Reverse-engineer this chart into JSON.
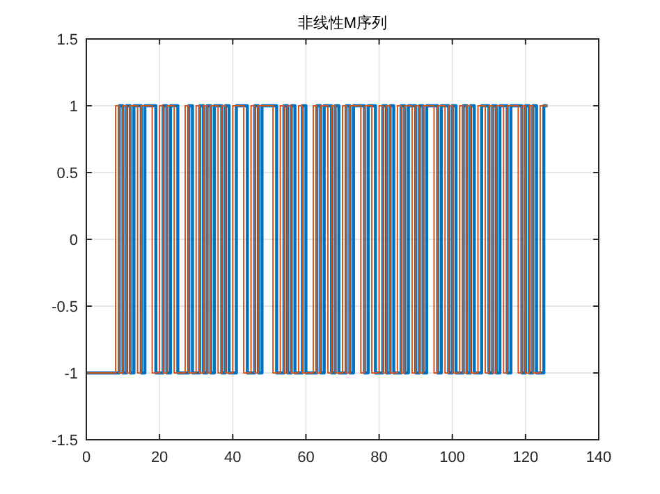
{
  "chart_data": {
    "type": "step",
    "title": "非线性M序列",
    "xlim": [
      0,
      140
    ],
    "xticks": [
      0,
      20,
      40,
      60,
      80,
      100,
      120,
      140
    ],
    "ylim": [
      -1.5,
      1.5
    ],
    "yticks": [
      -1.5,
      -1,
      -0.5,
      0,
      0.5,
      1,
      1.5
    ],
    "grid": true,
    "series": [
      {
        "color": "#0072bd",
        "x": [
          0,
          9,
          10,
          11,
          12,
          13,
          15,
          16,
          19,
          21,
          22,
          23,
          25,
          28,
          29,
          31,
          32,
          33,
          34,
          35,
          37,
          38,
          39,
          41,
          44,
          46,
          47,
          48,
          52,
          54,
          55,
          56,
          57,
          59,
          60,
          63,
          64,
          65,
          67,
          68,
          69,
          71,
          72,
          73,
          76,
          77,
          79,
          81,
          82,
          83,
          84,
          86,
          87,
          88,
          90,
          91,
          92,
          93,
          96,
          97,
          99,
          100,
          101,
          103,
          104,
          105,
          106,
          108,
          110,
          111,
          112,
          113,
          115,
          116,
          119,
          120,
          121,
          122,
          123,
          125,
          126
        ],
        "values": [
          -1,
          1,
          -1,
          1,
          -1,
          1,
          -1,
          1,
          -1,
          1,
          -1,
          1,
          -1,
          1,
          -1,
          1,
          -1,
          1,
          -1,
          1,
          -1,
          1,
          -1,
          1,
          -1,
          1,
          -1,
          1,
          -1,
          1,
          -1,
          1,
          -1,
          1,
          -1,
          1,
          -1,
          1,
          -1,
          1,
          -1,
          1,
          -1,
          1,
          -1,
          1,
          -1,
          1,
          -1,
          1,
          -1,
          1,
          -1,
          1,
          -1,
          1,
          -1,
          1,
          -1,
          1,
          -1,
          1,
          -1,
          1,
          -1,
          1,
          -1,
          1,
          -1,
          1,
          -1,
          1,
          -1,
          1,
          -1,
          1,
          -1,
          1,
          -1,
          1,
          1
        ]
      },
      {
        "color": "#d95319",
        "x": [
          0,
          8,
          9,
          10,
          11,
          12,
          14,
          15,
          18,
          20,
          21,
          22,
          24,
          27,
          28,
          30,
          31,
          32,
          33,
          34,
          36,
          37,
          38,
          40,
          43,
          45,
          46,
          47,
          51,
          53,
          54,
          55,
          56,
          58,
          59,
          62,
          63,
          64,
          66,
          67,
          68,
          70,
          71,
          72,
          75,
          76,
          78,
          80,
          81,
          82,
          83,
          85,
          86,
          87,
          89,
          90,
          91,
          92,
          95,
          96,
          98,
          99,
          100,
          102,
          103,
          104,
          105,
          107,
          109,
          110,
          111,
          112,
          114,
          115,
          118,
          119,
          120,
          121,
          122,
          124,
          126
        ],
        "values": [
          -1,
          1,
          -1,
          1,
          -1,
          1,
          -1,
          1,
          -1,
          1,
          -1,
          1,
          -1,
          1,
          -1,
          1,
          -1,
          1,
          -1,
          1,
          -1,
          1,
          -1,
          1,
          -1,
          1,
          -1,
          1,
          -1,
          1,
          -1,
          1,
          -1,
          1,
          -1,
          1,
          -1,
          1,
          -1,
          1,
          -1,
          1,
          -1,
          1,
          -1,
          1,
          -1,
          1,
          -1,
          1,
          -1,
          1,
          -1,
          1,
          -1,
          1,
          -1,
          1,
          -1,
          1,
          -1,
          1,
          -1,
          1,
          -1,
          1,
          -1,
          1,
          -1,
          1,
          -1,
          1,
          -1,
          1,
          -1,
          1,
          -1,
          1,
          -1,
          1,
          1
        ]
      }
    ]
  }
}
